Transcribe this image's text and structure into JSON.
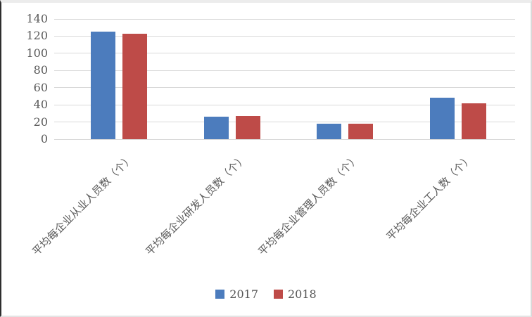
{
  "chart_data": {
    "type": "bar",
    "title": "",
    "xlabel": "",
    "ylabel": "",
    "categories": [
      "平均每企业从业人员数（个）",
      "平均每企业研发人员数（个）",
      "平均每企业管理人员数（个）",
      "平均每企业工人数（个）"
    ],
    "series": [
      {
        "name": "2017",
        "color": "#4c7cbd",
        "values": [
          125,
          26,
          18,
          48
        ]
      },
      {
        "name": "2018",
        "color": "#be4b48",
        "values": [
          123,
          27,
          18,
          42
        ]
      }
    ],
    "ylim": [
      0,
      140
    ],
    "yticks": [
      0,
      20,
      40,
      60,
      80,
      100,
      120,
      140
    ],
    "grid": true,
    "legend_position": "bottom-center",
    "colors": {
      "gridline": "#d9d9d9",
      "axis_text": "#595959",
      "background": "#ffffff"
    }
  }
}
